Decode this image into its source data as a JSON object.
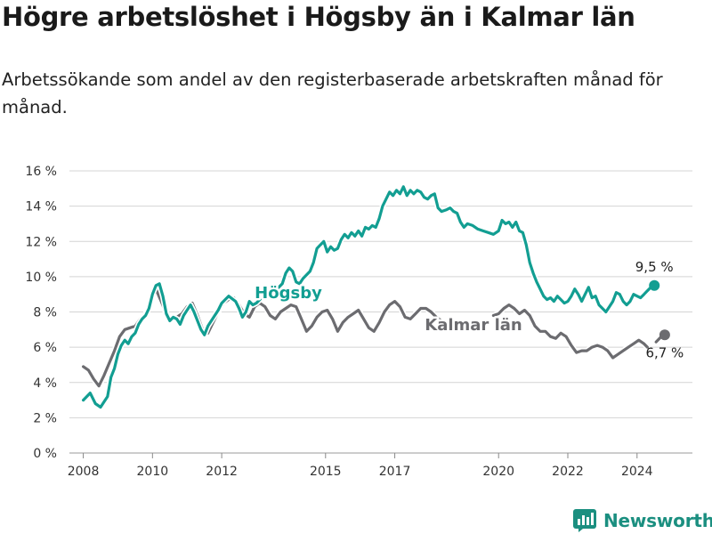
{
  "title": "Högre arbetslöshet i Högsby än i Kalmar län",
  "subtitle": "Arbetssökande som andel av den registerbaserade arbetskraften månad för månad.",
  "brand": {
    "name": "Newsworthy",
    "logo_icon": "newsworthy-chart-logo-icon"
  },
  "colors": {
    "hogsby": "#129e92",
    "kalmar": "#6c6c70",
    "grid": "#d4d4d4"
  },
  "chart_data": {
    "type": "line",
    "title": "Högre arbetslöshet i Högsby än i Kalmar län",
    "subtitle": "Arbetssökande som andel av den registerbaserade arbetskraften månad för månad.",
    "xlabel": "",
    "ylabel": "",
    "x_range": [
      2007.6,
      2025.6
    ],
    "ylim": [
      0,
      16
    ],
    "y_ticks": [
      0,
      2,
      4,
      6,
      8,
      10,
      12,
      14,
      16
    ],
    "y_tick_labels": [
      "0 %",
      "2 %",
      "4 %",
      "6 %",
      "8 %",
      "10 %",
      "12 %",
      "14 %",
      "16 %"
    ],
    "x_ticks": [
      2008,
      2010,
      2012,
      2015,
      2017,
      2020,
      2022,
      2024
    ],
    "x_tick_labels": [
      "2008",
      "2010",
      "2012",
      "2015",
      "2017",
      "2020",
      "2022",
      "2024"
    ],
    "grid": "horizontal",
    "legend": "inline labels",
    "series": [
      {
        "name": "Högsby",
        "end_label": "9,5 %",
        "points": [
          [
            2008.0,
            3.0
          ],
          [
            2008.2,
            3.4
          ],
          [
            2008.35,
            2.8
          ],
          [
            2008.5,
            2.6
          ],
          [
            2008.6,
            2.9
          ],
          [
            2008.7,
            3.2
          ],
          [
            2008.8,
            4.3
          ],
          [
            2008.9,
            4.8
          ],
          [
            2009.0,
            5.6
          ],
          [
            2009.1,
            6.1
          ],
          [
            2009.2,
            6.4
          ],
          [
            2009.3,
            6.2
          ],
          [
            2009.4,
            6.6
          ],
          [
            2009.5,
            6.8
          ],
          [
            2009.6,
            7.3
          ],
          [
            2009.7,
            7.6
          ],
          [
            2009.8,
            7.8
          ],
          [
            2009.9,
            8.2
          ],
          [
            2010.0,
            9.0
          ],
          [
            2010.1,
            9.5
          ],
          [
            2010.2,
            9.6
          ],
          [
            2010.3,
            8.9
          ],
          [
            2010.4,
            7.9
          ],
          [
            2010.5,
            7.5
          ],
          [
            2010.6,
            7.7
          ],
          [
            2010.7,
            7.6
          ],
          [
            2010.8,
            7.3
          ],
          [
            2010.9,
            7.8
          ],
          [
            2011.0,
            8.1
          ],
          [
            2011.1,
            8.4
          ],
          [
            2011.2,
            8.0
          ],
          [
            2011.3,
            7.5
          ],
          [
            2011.4,
            7.0
          ],
          [
            2011.5,
            6.7
          ],
          [
            2011.6,
            7.2
          ],
          [
            2011.8,
            7.8
          ],
          [
            2011.9,
            8.1
          ],
          [
            2012.0,
            8.5
          ],
          [
            2012.2,
            8.9
          ],
          [
            2012.4,
            8.6
          ],
          [
            2012.5,
            8.2
          ],
          [
            2012.6,
            7.7
          ],
          [
            2012.7,
            8.0
          ],
          [
            2012.8,
            8.6
          ],
          [
            2012.9,
            8.4
          ],
          [
            2013.0,
            8.5
          ],
          [
            2013.15,
            8.8
          ],
          [
            2013.3,
            9.0
          ],
          [
            2013.45,
            9.2
          ],
          [
            2013.6,
            9.3
          ],
          [
            2013.75,
            9.6
          ],
          [
            2013.85,
            10.2
          ],
          [
            2013.95,
            10.5
          ],
          [
            2014.05,
            10.3
          ],
          [
            2014.15,
            9.7
          ],
          [
            2014.25,
            9.6
          ],
          [
            2014.35,
            9.9
          ],
          [
            2014.45,
            10.1
          ],
          [
            2014.55,
            10.3
          ],
          [
            2014.65,
            10.8
          ],
          [
            2014.75,
            11.6
          ],
          [
            2014.85,
            11.8
          ],
          [
            2014.95,
            12.0
          ],
          [
            2015.05,
            11.4
          ],
          [
            2015.15,
            11.7
          ],
          [
            2015.25,
            11.5
          ],
          [
            2015.35,
            11.6
          ],
          [
            2015.45,
            12.1
          ],
          [
            2015.55,
            12.4
          ],
          [
            2015.65,
            12.2
          ],
          [
            2015.75,
            12.5
          ],
          [
            2015.85,
            12.3
          ],
          [
            2015.95,
            12.6
          ],
          [
            2016.05,
            12.3
          ],
          [
            2016.15,
            12.8
          ],
          [
            2016.25,
            12.7
          ],
          [
            2016.35,
            12.9
          ],
          [
            2016.45,
            12.8
          ],
          [
            2016.55,
            13.3
          ],
          [
            2016.65,
            14.0
          ],
          [
            2016.75,
            14.4
          ],
          [
            2016.85,
            14.8
          ],
          [
            2016.95,
            14.6
          ],
          [
            2017.05,
            14.9
          ],
          [
            2017.15,
            14.7
          ],
          [
            2017.25,
            15.1
          ],
          [
            2017.35,
            14.6
          ],
          [
            2017.45,
            14.9
          ],
          [
            2017.55,
            14.7
          ],
          [
            2017.65,
            14.9
          ],
          [
            2017.75,
            14.8
          ],
          [
            2017.85,
            14.5
          ],
          [
            2017.95,
            14.4
          ],
          [
            2018.05,
            14.6
          ],
          [
            2018.15,
            14.7
          ],
          [
            2018.25,
            13.9
          ],
          [
            2018.35,
            13.7
          ],
          [
            2018.5,
            13.8
          ],
          [
            2018.6,
            13.9
          ],
          [
            2018.7,
            13.7
          ],
          [
            2018.8,
            13.6
          ],
          [
            2018.9,
            13.1
          ],
          [
            2019.0,
            12.8
          ],
          [
            2019.1,
            13.0
          ],
          [
            2019.25,
            12.9
          ],
          [
            2019.4,
            12.7
          ],
          [
            2019.55,
            12.6
          ],
          [
            2019.7,
            12.5
          ],
          [
            2019.85,
            12.4
          ],
          [
            2020.0,
            12.6
          ],
          [
            2020.1,
            13.2
          ],
          [
            2020.2,
            13.0
          ],
          [
            2020.3,
            13.1
          ],
          [
            2020.4,
            12.8
          ],
          [
            2020.5,
            13.1
          ],
          [
            2020.6,
            12.6
          ],
          [
            2020.7,
            12.5
          ],
          [
            2020.8,
            11.8
          ],
          [
            2020.9,
            10.8
          ],
          [
            2021.0,
            10.2
          ],
          [
            2021.1,
            9.7
          ],
          [
            2021.2,
            9.3
          ],
          [
            2021.3,
            8.9
          ],
          [
            2021.4,
            8.7
          ],
          [
            2021.5,
            8.8
          ],
          [
            2021.6,
            8.6
          ],
          [
            2021.7,
            8.9
          ],
          [
            2021.8,
            8.7
          ],
          [
            2021.9,
            8.5
          ],
          [
            2022.0,
            8.6
          ],
          [
            2022.1,
            8.9
          ],
          [
            2022.2,
            9.3
          ],
          [
            2022.3,
            9.0
          ],
          [
            2022.4,
            8.6
          ],
          [
            2022.5,
            9.0
          ],
          [
            2022.6,
            9.4
          ],
          [
            2022.7,
            8.8
          ],
          [
            2022.8,
            8.9
          ],
          [
            2022.9,
            8.4
          ],
          [
            2023.0,
            8.2
          ],
          [
            2023.1,
            8.0
          ],
          [
            2023.2,
            8.3
          ],
          [
            2023.3,
            8.6
          ],
          [
            2023.4,
            9.1
          ],
          [
            2023.5,
            9.0
          ],
          [
            2023.6,
            8.6
          ],
          [
            2023.7,
            8.4
          ],
          [
            2023.8,
            8.6
          ],
          [
            2023.9,
            9.0
          ],
          [
            2024.0,
            8.9
          ],
          [
            2024.1,
            8.8
          ],
          [
            2024.2,
            9.0
          ],
          [
            2024.3,
            9.2
          ],
          [
            2024.4,
            9.4
          ],
          [
            2024.5,
            9.5
          ]
        ]
      },
      {
        "name": "Kalmar län",
        "end_label": "6,7 %",
        "points": [
          [
            2008.0,
            4.9
          ],
          [
            2008.15,
            4.7
          ],
          [
            2008.3,
            4.2
          ],
          [
            2008.45,
            3.8
          ],
          [
            2008.6,
            4.4
          ],
          [
            2008.75,
            5.1
          ],
          [
            2008.9,
            5.8
          ],
          [
            2009.05,
            6.6
          ],
          [
            2009.2,
            7.0
          ],
          [
            2009.35,
            7.1
          ],
          [
            2009.5,
            7.2
          ],
          [
            2009.65,
            7.6
          ],
          [
            2009.8,
            7.9
          ],
          [
            2009.95,
            8.5
          ],
          [
            2010.1,
            9.3
          ],
          [
            2010.25,
            8.6
          ],
          [
            2010.4,
            7.9
          ],
          [
            2010.55,
            7.6
          ],
          [
            2010.7,
            7.7
          ],
          [
            2010.85,
            7.9
          ],
          [
            2011.0,
            8.3
          ],
          [
            2011.15,
            8.5
          ],
          [
            2011.3,
            7.8
          ],
          [
            2011.45,
            7.0
          ],
          [
            2011.6,
            6.8
          ],
          [
            2011.75,
            7.4
          ],
          [
            2011.9,
            8.0
          ],
          [
            2012.05,
            8.5
          ],
          [
            2012.2,
            8.7
          ],
          [
            2012.35,
            8.8
          ],
          [
            2012.5,
            8.4
          ],
          [
            2012.65,
            7.9
          ],
          [
            2012.8,
            7.7
          ],
          [
            2012.95,
            8.3
          ],
          [
            2013.1,
            8.5
          ],
          [
            2013.25,
            8.3
          ],
          [
            2013.4,
            7.8
          ],
          [
            2013.55,
            7.6
          ],
          [
            2013.7,
            8.0
          ],
          [
            2013.85,
            8.2
          ],
          [
            2014.0,
            8.4
          ],
          [
            2014.15,
            8.3
          ],
          [
            2014.3,
            7.6
          ],
          [
            2014.45,
            6.9
          ],
          [
            2014.6,
            7.2
          ],
          [
            2014.75,
            7.7
          ],
          [
            2014.9,
            8.0
          ],
          [
            2015.05,
            8.1
          ],
          [
            2015.2,
            7.6
          ],
          [
            2015.35,
            6.9
          ],
          [
            2015.5,
            7.4
          ],
          [
            2015.65,
            7.7
          ],
          [
            2015.8,
            7.9
          ],
          [
            2015.95,
            8.1
          ],
          [
            2016.1,
            7.6
          ],
          [
            2016.25,
            7.1
          ],
          [
            2016.4,
            6.9
          ],
          [
            2016.55,
            7.4
          ],
          [
            2016.7,
            8.0
          ],
          [
            2016.85,
            8.4
          ],
          [
            2017.0,
            8.6
          ],
          [
            2017.15,
            8.3
          ],
          [
            2017.3,
            7.7
          ],
          [
            2017.45,
            7.6
          ],
          [
            2017.6,
            7.9
          ],
          [
            2017.75,
            8.2
          ],
          [
            2017.9,
            8.2
          ],
          [
            2018.05,
            8.0
          ],
          [
            2018.2,
            7.7
          ],
          [
            2018.35,
            7.5
          ]
        ],
        "points_after_label": [
          [
            2019.85,
            7.8
          ],
          [
            2020.0,
            7.9
          ],
          [
            2020.15,
            8.2
          ],
          [
            2020.3,
            8.4
          ],
          [
            2020.45,
            8.2
          ],
          [
            2020.6,
            7.9
          ],
          [
            2020.75,
            8.1
          ],
          [
            2020.9,
            7.8
          ],
          [
            2021.05,
            7.2
          ],
          [
            2021.2,
            6.9
          ],
          [
            2021.35,
            6.9
          ],
          [
            2021.5,
            6.6
          ],
          [
            2021.65,
            6.5
          ],
          [
            2021.8,
            6.8
          ],
          [
            2021.95,
            6.6
          ],
          [
            2022.1,
            6.1
          ],
          [
            2022.25,
            5.7
          ],
          [
            2022.4,
            5.8
          ],
          [
            2022.55,
            5.8
          ],
          [
            2022.7,
            6.0
          ],
          [
            2022.85,
            6.1
          ],
          [
            2023.0,
            6.0
          ],
          [
            2023.15,
            5.8
          ],
          [
            2023.3,
            5.4
          ],
          [
            2023.45,
            5.6
          ],
          [
            2023.6,
            5.8
          ],
          [
            2023.75,
            6.0
          ],
          [
            2023.9,
            6.2
          ],
          [
            2024.05,
            6.4
          ],
          [
            2024.2,
            6.2
          ],
          [
            2024.3,
            6.0
          ]
        ],
        "points_end_segment": [
          [
            2024.55,
            6.3
          ],
          [
            2024.7,
            6.6
          ],
          [
            2024.8,
            6.7
          ]
        ]
      }
    ]
  }
}
